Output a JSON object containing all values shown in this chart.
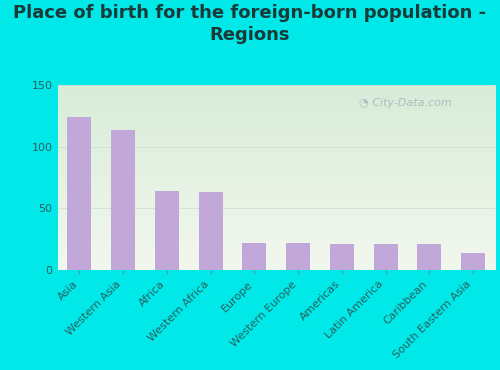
{
  "title": "Place of birth for the foreign-born population -\nRegions",
  "categories": [
    "Asia",
    "Western Asia",
    "Africa",
    "Western Africa",
    "Europe",
    "Western Europe",
    "Americas",
    "Latin America",
    "Caribbean",
    "South Eastern Asia"
  ],
  "values": [
    124,
    114,
    64,
    63,
    22,
    22,
    21,
    21,
    21,
    14
  ],
  "bar_color": "#c2a8d8",
  "background_outer": "#00e8e8",
  "bg_top_right": "#d8ecd8",
  "bg_bottom_left": "#f0f5ec",
  "ylim": [
    0,
    150
  ],
  "yticks": [
    0,
    50,
    100,
    150
  ],
  "title_fontsize": 13,
  "tick_label_fontsize": 8,
  "ytick_fontsize": 8,
  "watermark_text": "City-Data.com",
  "title_color": "#1a3a3a",
  "tick_color": "#2a6060"
}
